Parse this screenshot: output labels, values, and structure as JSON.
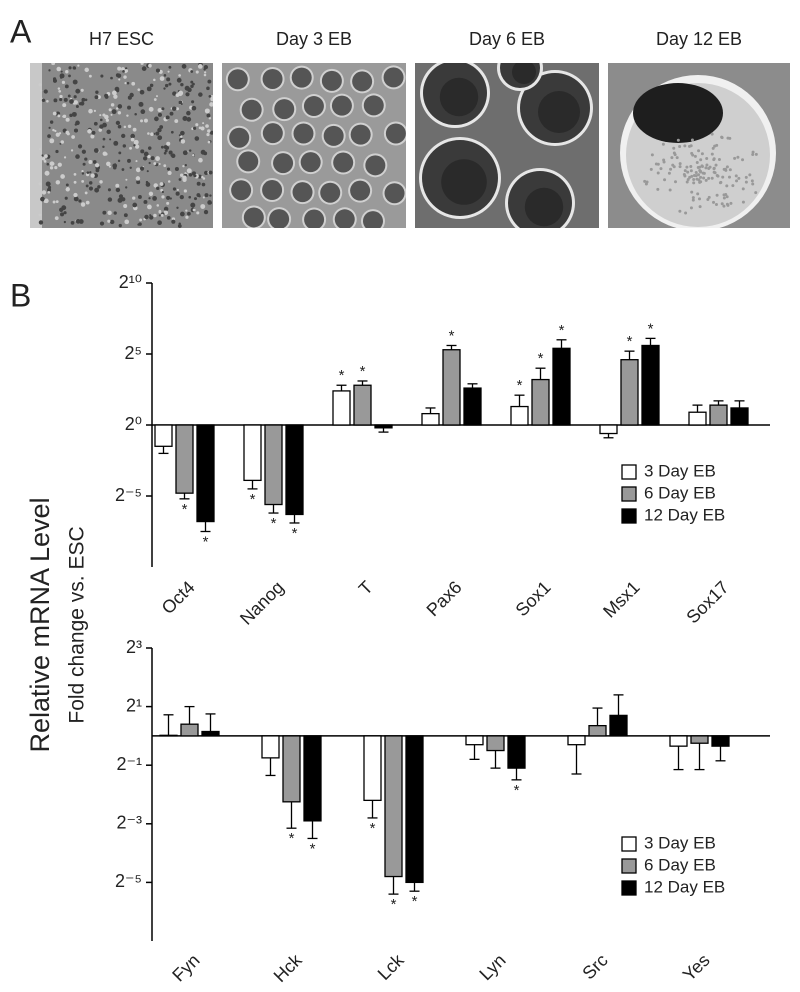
{
  "panel_labels": [
    "A",
    "B"
  ],
  "images": [
    {
      "title": "H7 ESC"
    },
    {
      "title": "Day 3 EB"
    },
    {
      "title": "Day 6 EB"
    },
    {
      "title": "Day 12 EB"
    }
  ],
  "ylabel": [
    "Relative mRNA Level",
    "Fold change vs. ESC"
  ],
  "chart_data": [
    {
      "type": "bar",
      "log_base": 2,
      "categories": [
        "Oct4",
        "Nanog",
        "T",
        "Pax6",
        "Sox1",
        "Msx1",
        "Sox17"
      ],
      "ylim": [
        -10,
        10
      ],
      "yticks": [
        {
          "value": 10,
          "label": "2¹⁰"
        },
        {
          "value": 5,
          "label": "2⁵"
        },
        {
          "value": 0,
          "label": "2⁰"
        },
        {
          "value": -5,
          "label": "2⁻⁵"
        }
      ],
      "legend": "right",
      "series": [
        {
          "name": "3 Day EB",
          "color": "#ffffff",
          "values": [
            -1.5,
            -3.9,
            2.4,
            0.8,
            1.3,
            -0.6,
            0.9
          ],
          "errors": [
            0.5,
            0.6,
            0.4,
            0.4,
            0.8,
            0.3,
            0.5
          ],
          "annotations": [
            null,
            "*",
            "*",
            null,
            "*",
            null,
            null
          ]
        },
        {
          "name": "6 Day EB",
          "color": "#999999",
          "values": [
            -4.8,
            -5.6,
            2.8,
            5.3,
            3.2,
            4.6,
            1.4
          ],
          "errors": [
            0.4,
            0.6,
            0.3,
            0.3,
            0.8,
            0.6,
            0.3
          ],
          "annotations": [
            "*",
            "*",
            "*",
            "*",
            "*",
            "*",
            null
          ]
        },
        {
          "name": "12 Day EB",
          "color": "#000000",
          "values": [
            -6.8,
            -6.3,
            -0.2,
            2.6,
            5.4,
            5.6,
            1.2
          ],
          "errors": [
            0.7,
            0.6,
            0.3,
            0.3,
            0.6,
            0.5,
            0.5
          ],
          "annotations": [
            "*",
            "*",
            null,
            null,
            "*",
            "*",
            null
          ]
        }
      ]
    },
    {
      "type": "bar",
      "log_base": 2,
      "categories": [
        "Fyn",
        "Hck",
        "Lck",
        "Lyn",
        "Src",
        "Yes"
      ],
      "ylim": [
        -7,
        3
      ],
      "yticks": [
        {
          "value": 3,
          "label": "2³"
        },
        {
          "value": 1,
          "label": "2¹"
        },
        {
          "value": -1,
          "label": "2⁻¹"
        },
        {
          "value": -3,
          "label": "2⁻³"
        },
        {
          "value": -5,
          "label": "2⁻⁵"
        }
      ],
      "legend": "right",
      "series": [
        {
          "name": "3 Day EB",
          "color": "#ffffff",
          "values": [
            0.02,
            -0.75,
            -2.2,
            -0.3,
            -0.3,
            -0.35
          ],
          "errors": [
            0.7,
            0.6,
            0.6,
            0.5,
            1.0,
            0.8
          ],
          "annotations": [
            null,
            null,
            "*",
            null,
            null,
            null
          ]
        },
        {
          "name": "6 Day EB",
          "color": "#999999",
          "values": [
            0.4,
            -2.25,
            -4.8,
            -0.5,
            0.35,
            -0.25
          ],
          "errors": [
            0.6,
            0.9,
            0.6,
            0.6,
            0.6,
            0.9
          ],
          "annotations": [
            null,
            "*",
            "*",
            null,
            null,
            null
          ]
        },
        {
          "name": "12 Day EB",
          "color": "#000000",
          "values": [
            0.15,
            -2.9,
            -5.0,
            -1.1,
            0.7,
            -0.35
          ],
          "errors": [
            0.6,
            0.6,
            0.3,
            0.4,
            0.7,
            0.5
          ],
          "annotations": [
            null,
            "*",
            "*",
            "*",
            null,
            null
          ]
        }
      ]
    }
  ]
}
